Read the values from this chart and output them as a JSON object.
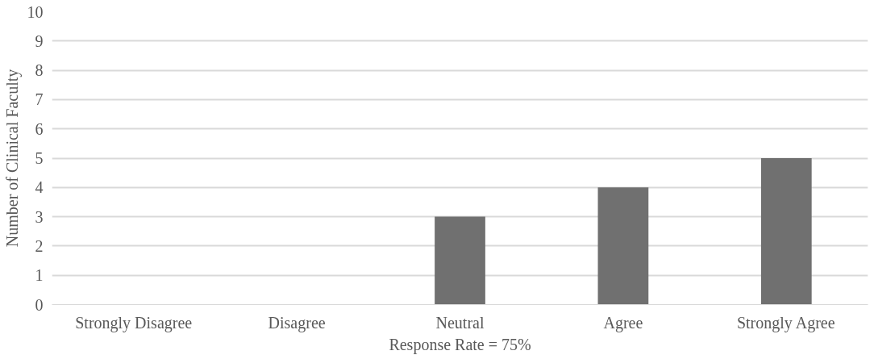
{
  "chart_data": {
    "type": "bar",
    "categories": [
      "Strongly Disagree",
      "Disagree",
      "Neutral",
      "Agree",
      "Strongly Agree"
    ],
    "values": [
      0,
      0,
      3,
      4,
      5
    ],
    "color": "#707070",
    "xlabel": "Response Rate = 75%",
    "ylabel": "Number of Clinical Faculty",
    "ylim": [
      0,
      10
    ],
    "yticks": [
      0,
      1,
      2,
      3,
      4,
      5,
      6,
      7,
      8,
      9,
      10
    ],
    "grid": "y"
  }
}
